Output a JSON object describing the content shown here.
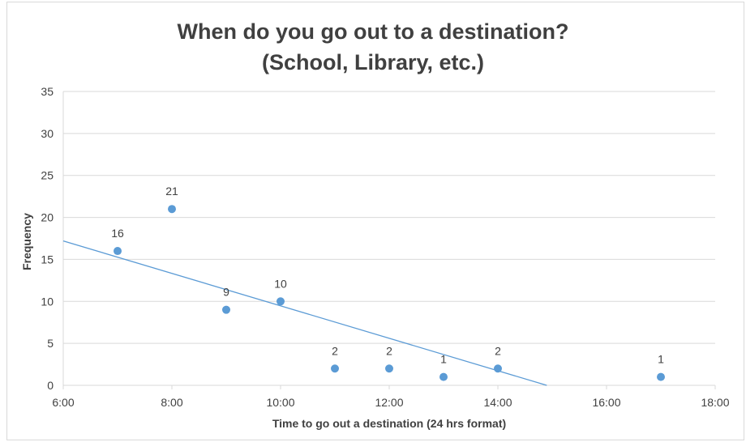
{
  "chart_data": {
    "type": "scatter",
    "title_line1": "When do you go out to a destination?",
    "title_line2": "(School, Library, etc.)",
    "xlabel": "Time to go out a destination (24 hrs format)",
    "ylabel": "Frequency",
    "xlim": [
      6,
      18
    ],
    "ylim": [
      0,
      35
    ],
    "x_ticks": [
      {
        "value": 6,
        "label": "6:00"
      },
      {
        "value": 8,
        "label": "8:00"
      },
      {
        "value": 10,
        "label": "10:00"
      },
      {
        "value": 12,
        "label": "12:00"
      },
      {
        "value": 14,
        "label": "14:00"
      },
      {
        "value": 16,
        "label": "16:00"
      },
      {
        "value": 18,
        "label": "18:00"
      }
    ],
    "y_ticks": [
      {
        "value": 0,
        "label": "0"
      },
      {
        "value": 5,
        "label": "5"
      },
      {
        "value": 10,
        "label": "10"
      },
      {
        "value": 15,
        "label": "15"
      },
      {
        "value": 20,
        "label": "20"
      },
      {
        "value": 25,
        "label": "25"
      },
      {
        "value": 30,
        "label": "30"
      },
      {
        "value": 35,
        "label": "35"
      }
    ],
    "grid": true,
    "points": [
      {
        "x": "7:00",
        "y": 16,
        "label": "16"
      },
      {
        "x": "8:00",
        "y": 21,
        "label": "21"
      },
      {
        "x": "9:00",
        "y": 9,
        "label": "9"
      },
      {
        "x": "10:00",
        "y": 10,
        "label": "10"
      },
      {
        "x": "11:00",
        "y": 2,
        "label": "2"
      },
      {
        "x": "12:00",
        "y": 2,
        "label": "2"
      },
      {
        "x": "13:00",
        "y": 1,
        "label": "1"
      },
      {
        "x": "14:00",
        "y": 2,
        "label": "2"
      },
      {
        "x": "17:00",
        "y": 1,
        "label": "1"
      }
    ],
    "trendline": {
      "type": "linear",
      "start": {
        "x": 6,
        "y": 17.2
      },
      "end": {
        "x": 14.9,
        "y": 0
      }
    },
    "colors": {
      "point": "#5b9bd5",
      "trendline": "#5b9bd5",
      "grid": "#d9d9d9",
      "text": "#404040"
    }
  }
}
